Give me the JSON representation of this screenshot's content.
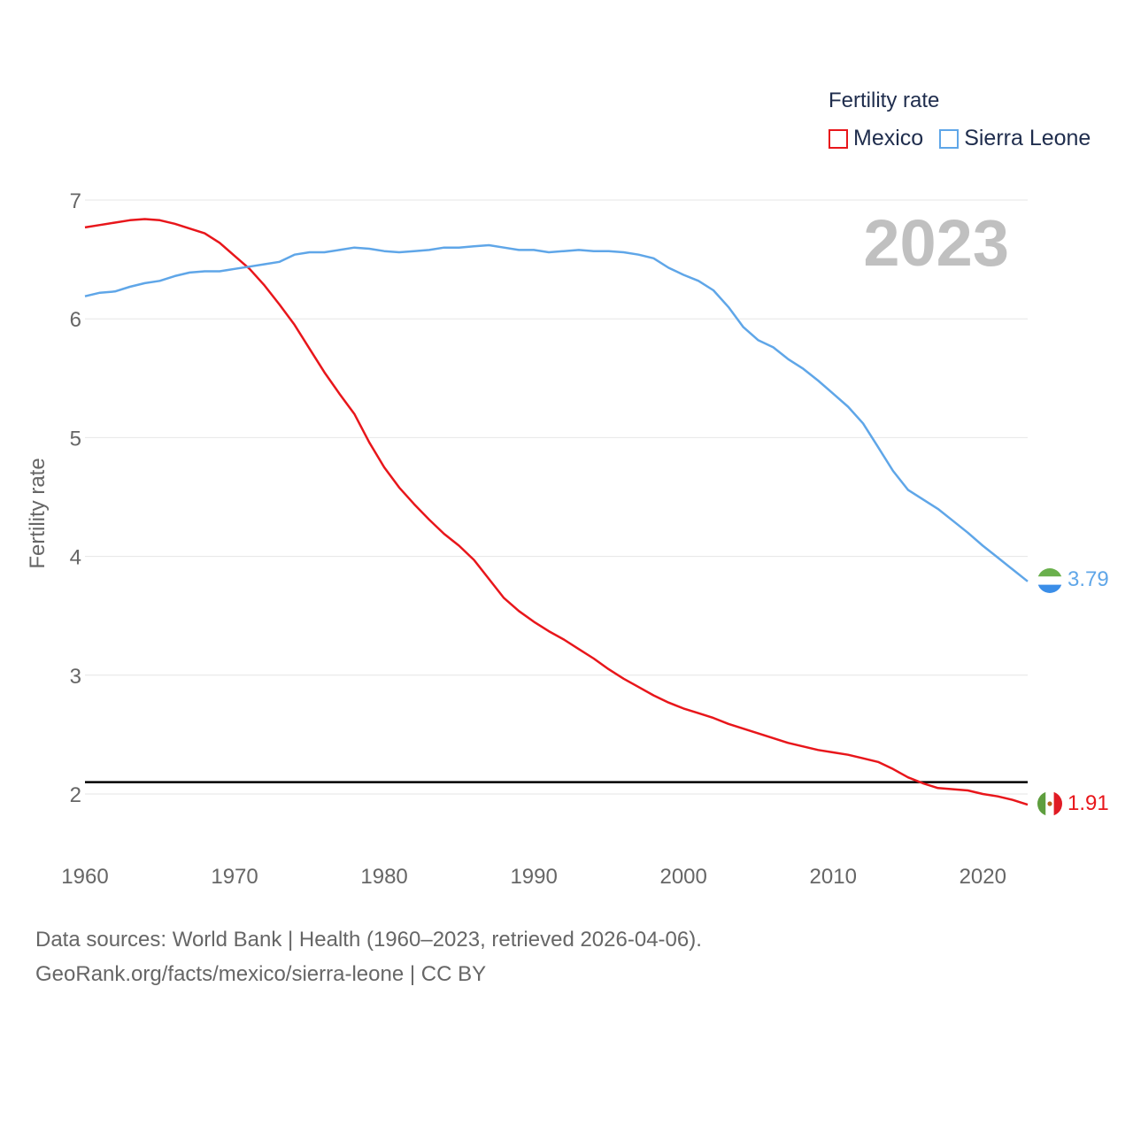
{
  "chart_data": {
    "type": "line",
    "ylabel": "Fertility rate",
    "xlabel": "",
    "legend_title": "Fertility rate",
    "legend_position": "top-right",
    "year_label": "2023",
    "xlim": [
      1960,
      2023
    ],
    "ylim": [
      1.5,
      7.2
    ],
    "x_ticks": [
      "1960",
      "1970",
      "1980",
      "1990",
      "2000",
      "2010",
      "2020"
    ],
    "y_ticks": [
      "2",
      "3",
      "4",
      "5",
      "6",
      "7"
    ],
    "grid": true,
    "reference_line": {
      "value": 2.1
    },
    "x": [
      1960,
      1961,
      1962,
      1963,
      1964,
      1965,
      1966,
      1967,
      1968,
      1969,
      1970,
      1971,
      1972,
      1973,
      1974,
      1975,
      1976,
      1977,
      1978,
      1979,
      1980,
      1981,
      1982,
      1983,
      1984,
      1985,
      1986,
      1987,
      1988,
      1989,
      1990,
      1991,
      1992,
      1993,
      1994,
      1995,
      1996,
      1997,
      1998,
      1999,
      2000,
      2001,
      2002,
      2003,
      2004,
      2005,
      2006,
      2007,
      2008,
      2009,
      2010,
      2011,
      2012,
      2013,
      2014,
      2015,
      2016,
      2017,
      2018,
      2019,
      2020,
      2021,
      2022,
      2023
    ],
    "series": [
      {
        "name": "Mexico",
        "color": "#e8161b",
        "end_label": "1.91",
        "values": [
          6.77,
          6.79,
          6.81,
          6.83,
          6.84,
          6.83,
          6.8,
          6.76,
          6.72,
          6.64,
          6.53,
          6.42,
          6.28,
          6.12,
          5.95,
          5.75,
          5.55,
          5.37,
          5.2,
          4.96,
          4.75,
          4.58,
          4.44,
          4.31,
          4.19,
          4.09,
          3.97,
          3.81,
          3.65,
          3.54,
          3.45,
          3.37,
          3.3,
          3.22,
          3.14,
          3.05,
          2.97,
          2.9,
          2.83,
          2.77,
          2.72,
          2.68,
          2.64,
          2.59,
          2.55,
          2.51,
          2.47,
          2.43,
          2.4,
          2.37,
          2.35,
          2.33,
          2.3,
          2.27,
          2.21,
          2.14,
          2.09,
          2.05,
          2.04,
          2.03,
          2.0,
          1.98,
          1.95,
          1.91
        ]
      },
      {
        "name": "Sierra Leone",
        "color": "#5fa6e8",
        "end_label": "3.79",
        "values": [
          6.19,
          6.22,
          6.23,
          6.27,
          6.3,
          6.32,
          6.36,
          6.39,
          6.4,
          6.4,
          6.42,
          6.44,
          6.46,
          6.48,
          6.54,
          6.56,
          6.56,
          6.58,
          6.6,
          6.59,
          6.57,
          6.56,
          6.57,
          6.58,
          6.6,
          6.6,
          6.61,
          6.62,
          6.6,
          6.58,
          6.58,
          6.56,
          6.57,
          6.58,
          6.57,
          6.57,
          6.56,
          6.54,
          6.51,
          6.43,
          6.37,
          6.32,
          6.24,
          6.1,
          5.93,
          5.82,
          5.76,
          5.66,
          5.58,
          5.48,
          5.37,
          5.26,
          5.12,
          4.92,
          4.72,
          4.56,
          4.48,
          4.4,
          4.3,
          4.2,
          4.09,
          3.99,
          3.89,
          3.79
        ]
      }
    ]
  },
  "footer": {
    "line1": "Data sources: World Bank | Health (1960–2023, retrieved 2026-04-06).",
    "line2": "GeoRank.org/facts/mexico/sierra-leone | CC BY"
  },
  "colors": {
    "grid": "#e6e6e6",
    "axis_text": "#666666",
    "reference": "#000000",
    "year": "#c0c0c0"
  }
}
